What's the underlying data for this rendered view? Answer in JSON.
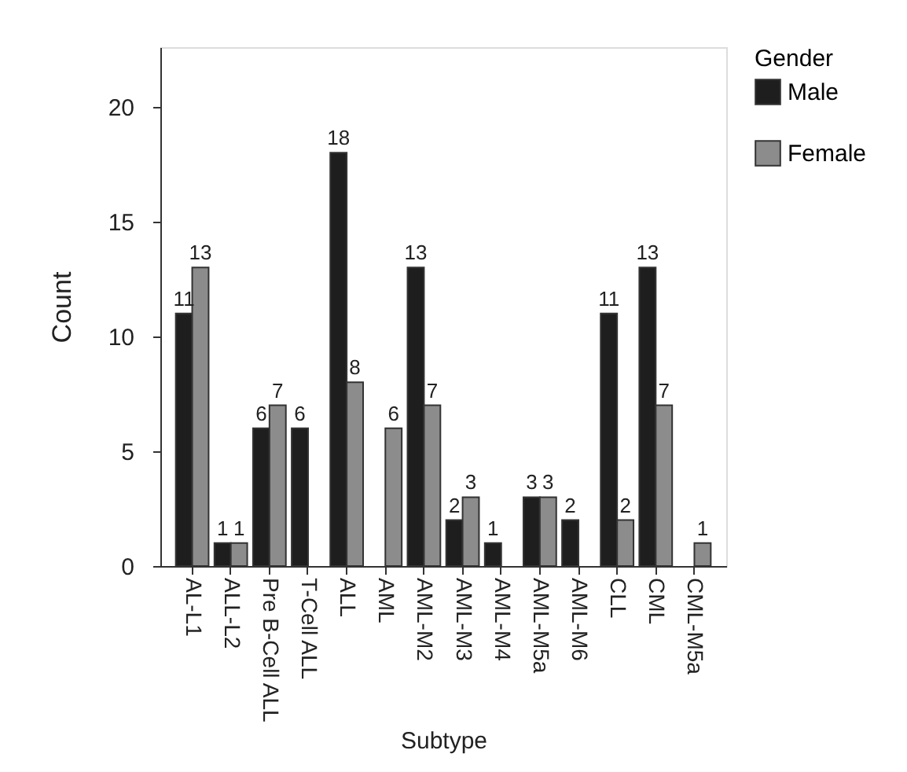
{
  "chart_data": {
    "type": "bar",
    "xlabel": "Subtype",
    "ylabel": "Count",
    "legend_title": "Gender",
    "categories": [
      "AL-L1",
      "ALL-L2",
      "Pre B-Cell ALL",
      "T-Cell ALL",
      "ALL",
      "AML",
      "AML-M2",
      "AML-M3",
      "AML-M4",
      "AML-M5a",
      "AML-M6",
      "CLL",
      "CML",
      "CML-M5a"
    ],
    "series": [
      {
        "name": "Male",
        "color": "#1e1e1e",
        "values": [
          11,
          1,
          6,
          6,
          18,
          null,
          13,
          2,
          1,
          3,
          2,
          11,
          13,
          null
        ]
      },
      {
        "name": "Female",
        "color": "#8c8c8c",
        "values": [
          13,
          1,
          7,
          null,
          8,
          6,
          7,
          3,
          null,
          3,
          null,
          2,
          7,
          1
        ]
      }
    ],
    "ylim": [
      0,
      22.6
    ],
    "yticks": [
      0,
      5,
      10,
      15,
      20
    ],
    "data_labels": true,
    "legend": "top right",
    "grid": false
  }
}
